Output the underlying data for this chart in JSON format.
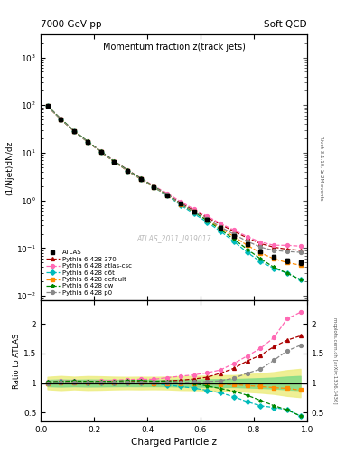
{
  "title": "Momentum fraction z(track jets)",
  "top_left_label": "7000 GeV pp",
  "top_right_label": "Soft QCD",
  "ylabel_main": "(1/Njet)dN/dz",
  "ylabel_ratio": "Ratio to ATLAS",
  "xlabel": "Charged Particle z",
  "right_label_main": "Rivet 3.1.10, ≥ 2M events",
  "right_label_ratio": "mcplots.cern.ch [arXiv:1306.3436]",
  "watermark": "ATLAS_2011_I919017",
  "ylim_main": [
    0.008,
    3000
  ],
  "ylim_ratio": [
    0.35,
    2.4
  ],
  "xlim": [
    0.0,
    1.0
  ],
  "z_values": [
    0.025,
    0.075,
    0.125,
    0.175,
    0.225,
    0.275,
    0.325,
    0.375,
    0.425,
    0.475,
    0.525,
    0.575,
    0.625,
    0.675,
    0.725,
    0.775,
    0.825,
    0.875,
    0.925,
    0.975
  ],
  "atlas_data": [
    95,
    50,
    28,
    17,
    10.5,
    6.5,
    4.2,
    2.8,
    1.9,
    1.3,
    0.85,
    0.58,
    0.4,
    0.27,
    0.18,
    0.12,
    0.085,
    0.065,
    0.055,
    0.05
  ],
  "atlas_err": [
    5,
    3,
    1.5,
    1.0,
    0.6,
    0.35,
    0.22,
    0.15,
    0.1,
    0.07,
    0.05,
    0.035,
    0.025,
    0.018,
    0.012,
    0.009,
    0.007,
    0.006,
    0.006,
    0.006
  ],
  "p370_data": [
    96,
    51,
    28.5,
    17.2,
    10.7,
    6.6,
    4.3,
    2.88,
    1.95,
    1.35,
    0.89,
    0.62,
    0.44,
    0.315,
    0.225,
    0.165,
    0.125,
    0.105,
    0.095,
    0.09
  ],
  "atlas_csc_data": [
    97,
    52,
    29,
    17.5,
    10.9,
    6.8,
    4.45,
    2.98,
    2.02,
    1.42,
    0.95,
    0.66,
    0.47,
    0.33,
    0.24,
    0.175,
    0.135,
    0.115,
    0.115,
    0.11
  ],
  "d6t_data": [
    96,
    51,
    28.5,
    17.2,
    10.6,
    6.55,
    4.25,
    2.82,
    1.88,
    1.26,
    0.8,
    0.53,
    0.35,
    0.225,
    0.138,
    0.082,
    0.052,
    0.038,
    0.03,
    0.022
  ],
  "default_data": [
    95,
    50.5,
    28.2,
    17.1,
    10.55,
    6.52,
    4.22,
    2.81,
    1.89,
    1.3,
    0.845,
    0.575,
    0.395,
    0.265,
    0.175,
    0.115,
    0.08,
    0.06,
    0.05,
    0.044
  ],
  "dw_data": [
    97,
    51.5,
    29,
    17.5,
    10.8,
    6.7,
    4.38,
    2.92,
    1.96,
    1.34,
    0.86,
    0.575,
    0.38,
    0.245,
    0.155,
    0.095,
    0.06,
    0.04,
    0.03,
    0.022
  ],
  "p0_data": [
    95,
    50.5,
    28.3,
    17.1,
    10.6,
    6.55,
    4.25,
    2.84,
    1.91,
    1.32,
    0.86,
    0.59,
    0.41,
    0.28,
    0.195,
    0.14,
    0.105,
    0.09,
    0.085,
    0.082
  ],
  "colors": {
    "atlas": "#000000",
    "p370": "#aa0000",
    "atlas_csc": "#ff69b4",
    "d6t": "#00bbbb",
    "default": "#ff8c00",
    "dw": "#008800",
    "p0": "#888888"
  },
  "band_inner_color": "#88dd88",
  "band_outer_color": "#eeee88"
}
